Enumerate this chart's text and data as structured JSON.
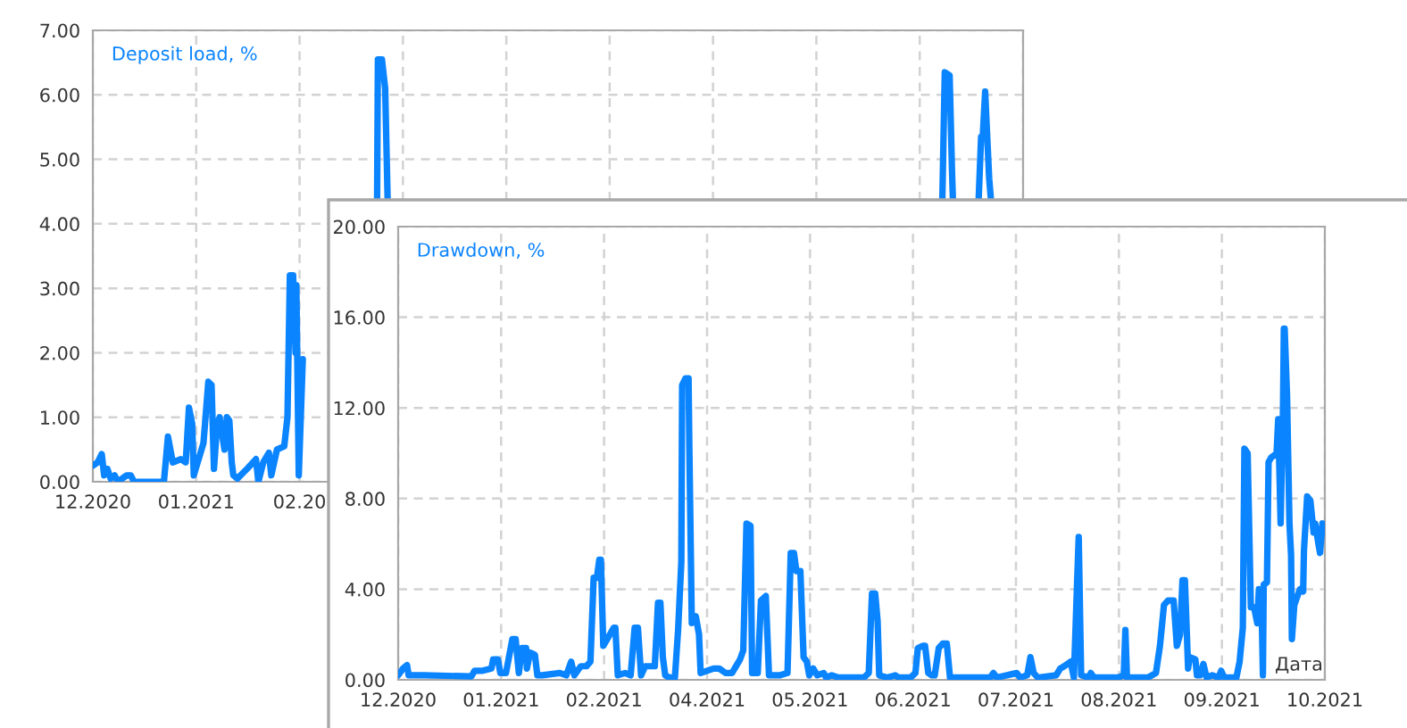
{
  "chart_data": [
    {
      "type": "line",
      "title": "Deposit load, %",
      "grid": true,
      "line_style": "solid",
      "xlim": [
        "2020-12-26",
        "2021-10-10"
      ],
      "ylim": [
        0,
        7
      ],
      "xticks": [
        {
          "value": "2020-12-26",
          "label": "12.2020"
        },
        {
          "value": "2021-01-27",
          "label": "01.2021"
        },
        {
          "value": "2021-02-28",
          "label": "02.20"
        },
        {
          "value": "2021-04-01",
          "label": null
        },
        {
          "value": "2021-05-03",
          "label": null
        },
        {
          "value": "2021-06-04",
          "label": null
        },
        {
          "value": "2021-07-06",
          "label": null
        },
        {
          "value": "2021-08-07",
          "label": null
        },
        {
          "value": "2021-09-08",
          "label": null
        },
        {
          "value": "2021-10-10",
          "label": null
        }
      ],
      "yticks": [
        {
          "value": 0,
          "label": "0.00"
        },
        {
          "value": 1,
          "label": "1.00"
        },
        {
          "value": 2,
          "label": "2.00"
        },
        {
          "value": 3,
          "label": "3.00"
        },
        {
          "value": 4,
          "label": "4.00"
        },
        {
          "value": 5,
          "label": "5.00"
        },
        {
          "value": 6,
          "label": "6.00"
        },
        {
          "value": 7,
          "label": "7.00"
        }
      ],
      "series": [
        {
          "color": "#0a84ff",
          "x": [
            "2020-12-26",
            "2020-12-27T12:00",
            "2020-12-28T18:00",
            "2020-12-29T12:00",
            "2020-12-30T12:00",
            "2020-12-31T12:00",
            "2021-01-01T18:00",
            "2021-01-02T18:00",
            "2021-01-05T12:00",
            "2021-01-06T18:00",
            "2021-01-07T18:00",
            "2021-01-17",
            "2021-01-18T06:00",
            "2021-01-19T18:00",
            "2021-01-22T06:00",
            "2021-01-23T18:00",
            "2021-01-24T18:00",
            "2021-01-25T18:00",
            "2021-01-26T06:00",
            "2021-01-29T06:00",
            "2021-01-30T18:00",
            "2021-01-31T18:00",
            "2021-02-01T12:00",
            "2021-02-02T12:00",
            "2021-02-03T06:00",
            "2021-02-04T18:00",
            "2021-02-05T12:00",
            "2021-02-06T06:00",
            "2021-02-07",
            "2021-02-07T12:00",
            "2021-02-08T18:00",
            "2021-02-11T18:00",
            "2021-02-14T12:00",
            "2021-02-15T06:00",
            "2021-02-16T18:00",
            "2021-02-18T12:00",
            "2021-02-19T06:00",
            "2021-02-21",
            "2021-02-23T06:00",
            "2021-02-24T06:00",
            "2021-02-25",
            "2021-02-26",
            "2021-02-26T18:00",
            "2021-02-27",
            "2021-02-27T18:00",
            "2021-03-01",
            "2021-03-13",
            "2021-03-24",
            "2021-03-24T06:00",
            "2021-03-25T12:00",
            "2021-03-26T12:00",
            "2021-03-27T06:00",
            "2021-06-04",
            "2021-09-15",
            "2021-09-15T18:00",
            "2021-09-17T06:00",
            "2021-09-18",
            "2021-09-18T06:00",
            "2021-09-22T12:00",
            "2021-09-26T06:00",
            "2021-09-27",
            "2021-09-27T12:00",
            "2021-09-28T06:00",
            "2021-09-28T18:00",
            "2021-09-29T12:00",
            "2021-09-30"
          ],
          "values": [
            0.25,
            0.3,
            0.43,
            0.1,
            0.2,
            0.05,
            0.1,
            0,
            0.1,
            0.1,
            0,
            0,
            0.7,
            0.3,
            0.35,
            0.3,
            1.15,
            0.9,
            0.1,
            0.6,
            1.55,
            1.5,
            0.2,
            0.9,
            1.0,
            0.5,
            1.0,
            0.95,
            0.3,
            0.1,
            0.05,
            0.2,
            0.35,
            0,
            0.3,
            0.45,
            0.1,
            0.5,
            0.55,
            1.0,
            3.2,
            3.2,
            2.0,
            3.05,
            0.1,
            1.9,
            null,
            4.4,
            6.55,
            6.55,
            6.1,
            4.4,
            null,
            4.4,
            6.35,
            6.3,
            4.8,
            4.4,
            null,
            4.4,
            5.35,
            5.35,
            6.05,
            5.5,
            4.7,
            4.4
          ]
        }
      ]
    },
    {
      "type": "line",
      "title": "Drawdown, %",
      "xlabel": "Дата",
      "grid": true,
      "line_style": "solid",
      "xlim": [
        "2020-12-26",
        "2021-10-10"
      ],
      "ylim": [
        0,
        20
      ],
      "xticks": [
        {
          "value": "2020-12-26",
          "label": "12.2020"
        },
        {
          "value": "2021-01-27",
          "label": "01.2021"
        },
        {
          "value": "2021-02-28",
          "label": "02.2021"
        },
        {
          "value": "2021-04-01",
          "label": "04.2021"
        },
        {
          "value": "2021-05-03",
          "label": "05.2021"
        },
        {
          "value": "2021-06-04",
          "label": "06.2021"
        },
        {
          "value": "2021-07-06",
          "label": "07.2021"
        },
        {
          "value": "2021-08-07",
          "label": "08.2021"
        },
        {
          "value": "2021-09-08",
          "label": "09.2021"
        },
        {
          "value": "2021-10-10",
          "label": "10.2021"
        }
      ],
      "yticks": [
        {
          "value": 0,
          "label": "0.00"
        },
        {
          "value": 4,
          "label": "4.00"
        },
        {
          "value": 8,
          "label": "8.00"
        },
        {
          "value": 12,
          "label": "12.00"
        },
        {
          "value": 16,
          "label": "16.00"
        },
        {
          "value": 20,
          "label": "20.00"
        }
      ],
      "series": [
        {
          "color": "#0a84ff",
          "x": [
            "2020-12-26",
            "2020-12-27T12:00",
            "2020-12-28T18:00",
            "2020-12-29T06:00",
            "2020-12-31",
            "2021-01-03",
            "2021-01-17T18:00",
            "2021-01-18T18:00",
            "2021-01-21T06:00",
            "2021-01-24",
            "2021-01-24T12:00",
            "2021-01-26",
            "2021-01-26T18:00",
            "2021-01-28T12:00",
            "2021-01-30T12:00",
            "2021-01-31T12:00",
            "2021-02-01T12:00",
            "2021-02-02T12:00",
            "2021-02-03T18:00",
            "2021-02-04",
            "2021-02-05",
            "2021-02-06T12:00",
            "2021-02-07T06:00",
            "2021-02-08T18:00",
            "2021-02-14T06:00",
            "2021-02-16T06:00",
            "2021-02-17T18:00",
            "2021-02-18T18:00",
            "2021-02-20T18:00",
            "2021-02-22T12:00",
            "2021-02-23T18:00",
            "2021-02-24T18:00",
            "2021-02-25T18:00",
            "2021-02-26T12:00",
            "2021-02-27",
            "2021-02-27T18:00",
            "2021-03-01",
            "2021-03-03",
            "2021-03-03T12:00",
            "2021-03-04T06:00",
            "2021-03-06T12:00",
            "2021-03-08T06:00",
            "2021-03-09T12:00",
            "2021-03-10T12:00",
            "2021-03-11T12:00",
            "2021-03-12T18:00",
            "2021-03-15T18:00",
            "2021-03-16T18:00",
            "2021-03-17T12:00",
            "2021-03-18T06:00",
            "2021-03-19",
            "2021-03-20T06:00",
            "2021-03-22",
            "2021-03-23",
            "2021-03-24",
            "2021-03-24T06:00",
            "2021-03-25T06:00",
            "2021-03-26T06:00",
            "2021-03-26T12:00",
            "2021-03-27T06:00",
            "2021-03-28T12:00",
            "2021-03-29T12:00",
            "2021-03-30",
            "2021-04-03",
            "2021-04-04T18:00",
            "2021-04-06T18:00",
            "2021-04-08T18:00",
            "2021-04-11T06:00",
            "2021-04-12T06:00",
            "2021-04-13T06:00",
            "2021-04-14T12:00",
            "2021-04-15",
            "2021-04-16T18:00",
            "2021-04-17T18:00",
            "2021-04-19T06:00",
            "2021-04-20T06:00",
            "2021-04-23T12:00",
            "2021-04-26",
            "2021-04-27",
            "2021-04-28",
            "2021-04-28T18:00",
            "2021-04-30",
            "2021-05-01",
            "2021-05-02",
            "2021-05-02T18:00",
            "2021-05-04",
            "2021-05-05T06:00",
            "2021-05-07T06:00",
            "2021-05-08",
            "2021-05-09T18:00",
            "2021-05-11T18:00",
            "2021-05-19T18:00",
            "2021-05-21T06:00",
            "2021-05-22T06:00",
            "2021-05-23T06:00",
            "2021-05-24",
            "2021-05-24T12:00",
            "2021-05-27",
            "2021-05-29T12:00",
            "2021-05-30T12:00",
            "2021-06-03T06:00",
            "2021-06-04T18:00",
            "2021-06-05T12:00",
            "2021-06-07",
            "2021-06-07T18:00",
            "2021-06-08T18:00",
            "2021-06-09T18:00",
            "2021-06-10T18:00",
            "2021-06-12",
            "2021-06-13T06:00",
            "2021-06-14T12:00",
            "2021-06-15T12:00",
            "2021-06-19T18:00",
            "2021-06-28",
            "2021-06-29",
            "2021-06-30",
            "2021-07-06T06:00",
            "2021-07-07T06:00",
            "2021-07-09T12:00",
            "2021-07-10T12:00",
            "2021-07-11T12:00",
            "2021-07-12T18:00",
            "2021-07-18T12:00",
            "2021-07-19T18:00",
            "2021-07-21",
            "2021-07-23",
            "2021-07-24",
            "2021-07-25",
            "2021-07-25T12:00",
            "2021-07-26T06:00",
            "2021-07-28T12:00",
            "2021-07-29T06:00",
            "2021-07-30T06:00",
            "2021-08-06T18:00",
            "2021-08-08T12:00",
            "2021-08-09",
            "2021-08-09T12:00",
            "2021-08-16",
            "2021-08-18T12:00",
            "2021-08-19T18:00",
            "2021-08-21",
            "2021-08-22T06:00",
            "2021-08-24",
            "2021-08-25",
            "2021-08-26",
            "2021-08-26T18:00",
            "2021-08-27T12:00",
            "2021-08-28T12:00",
            "2021-08-29",
            "2021-08-30T18:00",
            "2021-08-31T06:00",
            "2021-09-01T06:00",
            "2021-09-02T06:00",
            "2021-09-03T06:00",
            "2021-09-05",
            "2021-09-07",
            "2021-09-07T18:00",
            "2021-09-08T18:00",
            "2021-09-12T12:00",
            "2021-09-13T12:00",
            "2021-09-14T12:00",
            "2021-09-15",
            "2021-09-16",
            "2021-09-17",
            "2021-09-18",
            "2021-09-19",
            "2021-09-19T12:00",
            "2021-09-20T06:00",
            "2021-09-20T18:00",
            "2021-09-21",
            "2021-09-22",
            "2021-09-22T12:00",
            "2021-09-23T06:00",
            "2021-09-25",
            "2021-09-25T12:00",
            "2021-09-26T06:00",
            "2021-09-27",
            "2021-09-27T06:00",
            "2021-09-27T12:00",
            "2021-09-28T06:00",
            "2021-09-29",
            "2021-09-29T12:00",
            "2021-09-29T18:00",
            "2021-09-30T12:00",
            "2021-10-01",
            "2021-10-02T06:00",
            "2021-10-03T06:00",
            "2021-10-03T12:00",
            "2021-10-04T12:00",
            "2021-10-05T12:00",
            "2021-10-06T12:00",
            "2021-10-07",
            "2021-10-08",
            "2021-10-08T12:00",
            "2021-10-09T06:00"
          ],
          "values": [
            0.2,
            0.5,
            0.65,
            0.2,
            0.2,
            0.2,
            0.15,
            0.4,
            0.4,
            0.5,
            0.9,
            0.9,
            0.3,
            0.3,
            1.8,
            1.8,
            0.3,
            1.4,
            1.4,
            0.5,
            1.2,
            1.1,
            0.2,
            0.2,
            0.3,
            0.2,
            0.8,
            0.2,
            0.6,
            0.6,
            0.8,
            4.5,
            4.5,
            5.3,
            5.3,
            1.5,
            1.8,
            2.3,
            2.3,
            0.2,
            0.3,
            0.2,
            2.3,
            2.3,
            0.2,
            0.6,
            0.6,
            3.4,
            3.4,
            1.0,
            0.2,
            0.1,
            0.1,
            2.2,
            5.2,
            13.0,
            13.3,
            13.3,
            10.2,
            2.5,
            2.8,
            2.0,
            0.3,
            0.5,
            0.5,
            0.3,
            0.3,
            0.9,
            1.3,
            6.9,
            6.8,
            0.3,
            0.3,
            3.5,
            3.7,
            0.2,
            0.2,
            0.3,
            5.6,
            5.6,
            4.8,
            4.8,
            1.0,
            0.8,
            0.2,
            0.5,
            0.2,
            0.3,
            0.1,
            0.2,
            0.1,
            0.1,
            0.3,
            3.8,
            3.8,
            2.6,
            0.2,
            0.1,
            0.2,
            0.1,
            0.1,
            0.3,
            1.4,
            1.5,
            1.5,
            0.3,
            0.2,
            0.2,
            1.4,
            1.6,
            1.6,
            0.1,
            0.1,
            0.1,
            0.3,
            0.1,
            0.3,
            0.1,
            0.2,
            1.0,
            0.3,
            0.1,
            0.2,
            0.5,
            0.6,
            0.8,
            0.1,
            4.3,
            6.3,
            0.2,
            0.1,
            0.3,
            0.1,
            0.1,
            0.2,
            2.2,
            0.1,
            0.1,
            0.3,
            1.5,
            3.3,
            3.5,
            3.5,
            1.5,
            2.0,
            4.4,
            4.4,
            0.5,
            1.0,
            0.9,
            0.2,
            0.2,
            0.7,
            0.1,
            0.2,
            0.1,
            0.4,
            0.1,
            0.1,
            0.8,
            2.3,
            10.2,
            10.0,
            3.2,
            3.2,
            2.5,
            4.0,
            3.8,
            0.2,
            4.2,
            4.3,
            9.6,
            9.8,
            10.0,
            11.5,
            6.9,
            12.0,
            15.5,
            15.5,
            12.5,
            6.9,
            5.5,
            1.8,
            3.3,
            3.5,
            4.0,
            3.9,
            5.7,
            8.1,
            7.9,
            6.5,
            6.9,
            6.0,
            5.6,
            6.9
          ]
        }
      ]
    }
  ]
}
